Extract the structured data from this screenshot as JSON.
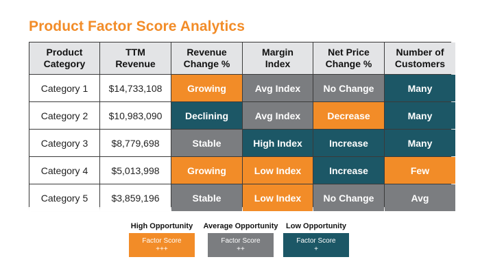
{
  "title": "Product Factor Score Analytics",
  "colors": {
    "orange": "#f28c28",
    "gray": "#7b7d80",
    "teal": "#1c5766",
    "header_bg": "#e3e4e6"
  },
  "table": {
    "headers": [
      "Product\nCategory",
      "TTM\nRevenue",
      "Revenue\nChange %",
      "Margin\nIndex",
      "Net Price\nChange %",
      "Number of\nCustomers"
    ],
    "rows": [
      {
        "category": "Category 1",
        "revenue": "$14,733,108",
        "revenue_change": "Growing",
        "margin_index": "Avg Index",
        "net_price_change": "No Change",
        "customers": "Many"
      },
      {
        "category": "Category 2",
        "revenue": "$10,983,090",
        "revenue_change": "Declining",
        "margin_index": "Avg Index",
        "net_price_change": "Decrease",
        "customers": "Many"
      },
      {
        "category": "Category 3",
        "revenue": "$8,779,698",
        "revenue_change": "Stable",
        "margin_index": "High Index",
        "net_price_change": "Increase",
        "customers": "Many"
      },
      {
        "category": "Category 4",
        "revenue": "$5,013,998",
        "revenue_change": "Growing",
        "margin_index": "Low Index",
        "net_price_change": "Increase",
        "customers": "Few"
      },
      {
        "category": "Category 5",
        "revenue": "$3,859,196",
        "revenue_change": "Stable",
        "margin_index": "Low Index",
        "net_price_change": "No Change",
        "customers": "Avg"
      }
    ]
  },
  "legend": [
    {
      "label": "High Opportunity",
      "line1": "Factor Score",
      "line2": "+++",
      "color": "orange"
    },
    {
      "label": "Average Opportunity",
      "line1": "Factor Score",
      "line2": "++",
      "color": "gray"
    },
    {
      "label": "Low Opportunity",
      "line1": "Factor Score",
      "line2": "+",
      "color": "teal"
    }
  ]
}
